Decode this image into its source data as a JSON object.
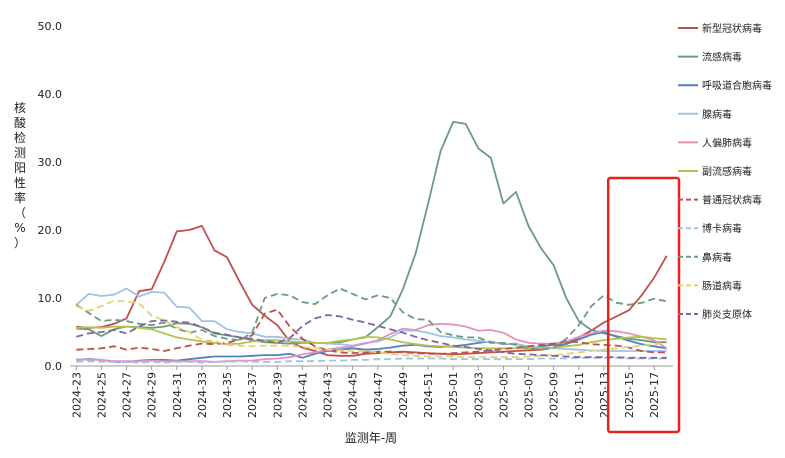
{
  "chart_data": {
    "type": "line",
    "ylabel": "核酸检测阳性率（%）",
    "xlabel": "监测年-周",
    "ylim": [
      0,
      50
    ],
    "yticks": [
      "0.0",
      "10.0",
      "20.0",
      "30.0",
      "40.0",
      "50.0"
    ],
    "grid": false,
    "legend_position": "right",
    "highlight": {
      "from": "2025-14",
      "to": "2025-18",
      "color": "#e8231e"
    },
    "x": [
      "2024-23",
      "2024-24",
      "2024-25",
      "2024-26",
      "2024-27",
      "2024-28",
      "2024-29",
      "2024-30",
      "2024-31",
      "2024-32",
      "2024-33",
      "2024-34",
      "2024-35",
      "2024-36",
      "2024-37",
      "2024-38",
      "2024-39",
      "2024-40",
      "2024-41",
      "2024-42",
      "2024-43",
      "2024-44",
      "2024-45",
      "2024-46",
      "2024-47",
      "2024-48",
      "2024-49",
      "2024-50",
      "2024-51",
      "2024-52",
      "2025-01",
      "2025-02",
      "2025-03",
      "2025-04",
      "2025-05",
      "2025-06",
      "2025-07",
      "2025-08",
      "2025-09",
      "2025-10",
      "2025-11",
      "2025-12",
      "2025-13",
      "2025-14",
      "2025-15",
      "2025-16",
      "2025-17",
      "2025-18"
    ],
    "xtick_labels": [
      "2024-23",
      "2024-25",
      "2024-27",
      "2024-29",
      "2024-31",
      "2024-33",
      "2024-35",
      "2024-37",
      "2024-39",
      "2024-41",
      "2024-43",
      "2024-45",
      "2024-47",
      "2024-49",
      "2024-51",
      "2025-01",
      "2025-03",
      "2025-05",
      "2025-07",
      "2025-09",
      "2025-11",
      "2025-13",
      "2025-15",
      "2025-17"
    ],
    "series": [
      {
        "name": "新型冠状病毒",
        "color": "#c0504d",
        "dash": "solid",
        "values": [
          5.8,
          5.6,
          5.7,
          6.2,
          7.0,
          11.0,
          11.3,
          15.3,
          19.8,
          20.0,
          20.6,
          17.0,
          16.0,
          12.4,
          9.0,
          7.4,
          6.0,
          3.6,
          2.7,
          2.2,
          1.6,
          1.5,
          1.5,
          1.8,
          1.9,
          2.0,
          2.1,
          2.0,
          1.9,
          1.8,
          1.7,
          1.8,
          1.9,
          2.0,
          2.1,
          2.2,
          2.3,
          2.4,
          2.7,
          3.3,
          4.2,
          5.2,
          6.4,
          7.3,
          8.2,
          10.4,
          13.0,
          16.2
        ]
      },
      {
        "name": "流感病毒",
        "color": "#6a9b7f",
        "dash": "solid",
        "values": [
          5.5,
          5.4,
          4.4,
          5.4,
          5.8,
          5.7,
          5.6,
          5.8,
          6.3,
          6.2,
          5.7,
          4.8,
          4.5,
          4.2,
          3.8,
          3.5,
          3.4,
          3.3,
          3.4,
          3.4,
          3.4,
          3.5,
          3.9,
          4.2,
          5.7,
          7.3,
          11.3,
          16.5,
          23.8,
          31.6,
          35.9,
          35.6,
          32.0,
          30.6,
          23.9,
          25.6,
          20.6,
          17.3,
          14.8,
          10.0,
          6.6,
          5.3,
          4.8,
          4.4,
          4.0,
          3.8,
          3.5,
          3.5
        ]
      },
      {
        "name": "呼吸道合胞病毒",
        "color": "#4f81bd",
        "dash": "solid",
        "values": [
          0.9,
          1.0,
          0.9,
          0.6,
          0.6,
          0.8,
          0.9,
          0.9,
          0.8,
          1.0,
          1.2,
          1.4,
          1.4,
          1.4,
          1.5,
          1.6,
          1.6,
          1.8,
          1.2,
          1.8,
          2.2,
          2.4,
          2.6,
          2.4,
          2.5,
          2.7,
          3.0,
          3.1,
          2.9,
          2.8,
          2.9,
          3.1,
          3.4,
          3.6,
          3.2,
          3.3,
          2.6,
          2.9,
          3.1,
          3.2,
          3.9,
          4.6,
          5.0,
          4.3,
          3.7,
          3.2,
          2.9,
          2.6
        ]
      },
      {
        "name": "腺病毒",
        "color": "#9dc3e6",
        "dash": "solid",
        "values": [
          9.0,
          10.6,
          10.3,
          10.5,
          11.4,
          10.2,
          10.9,
          10.8,
          8.7,
          8.6,
          6.6,
          6.6,
          5.4,
          5.0,
          4.8,
          4.3,
          4.3,
          4.0,
          3.9,
          3.4,
          3.3,
          3.2,
          3.0,
          3.4,
          3.6,
          4.2,
          5.2,
          5.2,
          4.9,
          4.4,
          4.2,
          3.9,
          3.7,
          3.5,
          3.3,
          3.2,
          2.9,
          2.7,
          2.6,
          2.5,
          2.4,
          2.3,
          2.2,
          2.2,
          2.2,
          2.2,
          2.2,
          2.2
        ]
      },
      {
        "name": "人偏肺病毒",
        "color": "#e491c2",
        "dash": "solid",
        "values": [
          1.0,
          0.9,
          0.9,
          0.7,
          0.7,
          0.7,
          0.8,
          0.7,
          0.7,
          0.7,
          0.7,
          0.6,
          0.7,
          0.8,
          0.8,
          1.0,
          1.1,
          1.3,
          1.7,
          2.0,
          2.4,
          2.7,
          2.9,
          3.3,
          3.8,
          4.7,
          5.5,
          5.3,
          6.0,
          6.2,
          6.1,
          5.8,
          5.2,
          5.3,
          4.9,
          3.9,
          3.4,
          3.3,
          3.3,
          3.6,
          4.3,
          4.8,
          5.2,
          5.1,
          4.8,
          4.3,
          3.8,
          2.6
        ]
      },
      {
        "name": "副流感病毒",
        "color": "#b7c24a",
        "dash": "solid",
        "values": [
          5.6,
          5.7,
          5.6,
          5.8,
          5.8,
          5.6,
          5.4,
          4.8,
          4.2,
          3.9,
          3.6,
          3.4,
          3.2,
          3.3,
          3.6,
          3.8,
          3.8,
          3.6,
          3.5,
          3.4,
          3.4,
          3.7,
          3.9,
          4.3,
          4.2,
          3.9,
          3.5,
          3.2,
          3.0,
          2.9,
          2.8,
          2.7,
          2.6,
          2.6,
          2.6,
          2.6,
          2.6,
          2.6,
          2.7,
          2.9,
          3.1,
          3.5,
          3.8,
          4.0,
          4.2,
          4.3,
          4.1,
          3.9
        ]
      },
      {
        "name": "普通冠状病毒",
        "color": "#c0504d",
        "dash": "dashed",
        "values": [
          2.4,
          2.5,
          2.6,
          2.9,
          2.4,
          2.7,
          2.5,
          2.2,
          2.6,
          3.0,
          3.3,
          3.2,
          3.4,
          3.9,
          4.5,
          7.7,
          8.3,
          5.8,
          4.0,
          2.9,
          2.3,
          2.0,
          1.9,
          2.0,
          2.1,
          2.1,
          2.0,
          1.9,
          1.8,
          1.8,
          1.9,
          2.0,
          2.1,
          2.3,
          2.5,
          2.7,
          2.9,
          3.1,
          3.3,
          3.6,
          3.5,
          3.2,
          3.1,
          3.0,
          2.7,
          2.2,
          2.0,
          2.0
        ]
      },
      {
        "name": "博卡病毒",
        "color": "#9dc3e6",
        "dash": "dashed",
        "values": [
          0.6,
          0.7,
          0.6,
          0.6,
          0.6,
          0.5,
          0.6,
          0.5,
          0.6,
          0.6,
          0.5,
          0.6,
          0.6,
          0.7,
          0.6,
          0.6,
          0.6,
          0.7,
          0.7,
          0.7,
          0.8,
          0.8,
          0.9,
          0.9,
          1.0,
          1.0,
          1.1,
          1.1,
          1.1,
          1.1,
          1.0,
          1.0,
          1.0,
          1.0,
          1.0,
          1.0,
          1.0,
          1.1,
          1.1,
          1.1,
          1.2,
          1.2,
          1.2,
          1.2,
          1.1,
          1.1,
          1.1,
          1.1
        ]
      },
      {
        "name": "鼻病毒",
        "color": "#6a9b7f",
        "dash": "dashed",
        "values": [
          9.0,
          7.8,
          6.6,
          6.8,
          6.6,
          6.2,
          6.0,
          6.4,
          5.5,
          4.9,
          5.3,
          4.4,
          4.0,
          3.8,
          4.9,
          10.0,
          10.6,
          10.4,
          9.4,
          9.1,
          10.4,
          11.4,
          10.6,
          9.8,
          10.4,
          10.0,
          7.9,
          6.9,
          6.8,
          5.0,
          4.5,
          4.2,
          4.2,
          3.4,
          3.4,
          3.1,
          2.6,
          2.4,
          2.7,
          4.0,
          6.0,
          8.8,
          10.4,
          9.3,
          9.0,
          9.3,
          9.9,
          9.5
        ]
      },
      {
        "name": "肠道病毒",
        "color": "#e6d26a",
        "dash": "dashed",
        "values": [
          8.8,
          8.1,
          8.8,
          9.6,
          9.5,
          9.2,
          7.4,
          6.7,
          5.7,
          5.0,
          3.8,
          3.7,
          3.1,
          3.0,
          2.9,
          3.0,
          3.0,
          3.0,
          2.8,
          2.6,
          2.4,
          2.3,
          2.2,
          2.2,
          2.0,
          1.8,
          1.6,
          1.5,
          1.4,
          1.4,
          1.4,
          1.3,
          1.3,
          1.3,
          1.3,
          1.3,
          1.4,
          1.5,
          1.6,
          1.8,
          2.0,
          2.2,
          2.4,
          2.6,
          2.8,
          3.0,
          3.2,
          3.4
        ]
      },
      {
        "name": "肺炎支原体",
        "color": "#8064a2",
        "dash": "dashed",
        "values": [
          4.3,
          4.8,
          5.0,
          5.3,
          4.8,
          5.8,
          6.6,
          6.7,
          6.5,
          6.4,
          5.7,
          4.9,
          4.6,
          4.2,
          4.0,
          3.7,
          3.4,
          4.1,
          5.9,
          7.0,
          7.5,
          7.3,
          6.8,
          6.4,
          5.9,
          5.4,
          4.9,
          4.3,
          3.8,
          3.4,
          3.0,
          2.8,
          2.5,
          2.3,
          2.0,
          1.8,
          1.7,
          1.6,
          1.5,
          1.4,
          1.3,
          1.3,
          1.3,
          1.3,
          1.2,
          1.2,
          1.2,
          1.2
        ]
      }
    ]
  }
}
